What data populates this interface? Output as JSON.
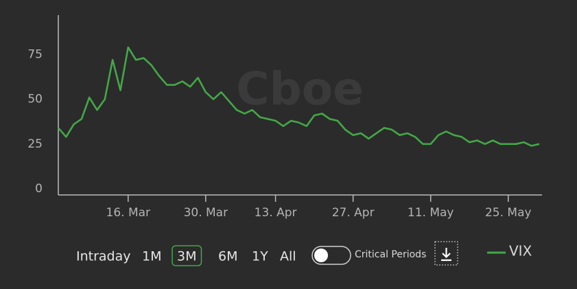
{
  "chart_data": {
    "type": "line",
    "watermark": "Cboe",
    "categories": [
      null,
      null,
      null,
      null,
      null,
      null,
      null,
      null,
      null,
      "16. Mar",
      null,
      null,
      null,
      null,
      null,
      null,
      null,
      null,
      null,
      "30. Mar",
      null,
      null,
      null,
      null,
      null,
      null,
      null,
      null,
      "13. Apr",
      null,
      null,
      null,
      null,
      null,
      null,
      null,
      null,
      null,
      "27. Apr",
      null,
      null,
      null,
      null,
      null,
      null,
      null,
      null,
      null,
      "11. May",
      null,
      null,
      null,
      null,
      null,
      null,
      null,
      null,
      null,
      "25. May",
      null,
      null,
      null,
      null
    ],
    "series": [
      {
        "name": "VIX",
        "color": "#43a847",
        "values": [
          34,
          29,
          36,
          39,
          51,
          44,
          50,
          72,
          55,
          79,
          72,
          73,
          69,
          63,
          58,
          58,
          60,
          57,
          62,
          54,
          50,
          54,
          49,
          44,
          42,
          44,
          40,
          39,
          38,
          35,
          38,
          37,
          35,
          41,
          42,
          39,
          38,
          33,
          30,
          31,
          28,
          31,
          34,
          33,
          30,
          31,
          29,
          25,
          25,
          30,
          32,
          30,
          29,
          26,
          27,
          25,
          27,
          25,
          25,
          25,
          26,
          24,
          25
        ]
      }
    ],
    "ylim": [
      0,
      97
    ],
    "yticks": [
      0,
      25,
      50,
      75
    ],
    "range_buttons": [
      "Intraday",
      "1M",
      "3M",
      "6M",
      "1Y",
      "All"
    ],
    "active_range": 2,
    "toggle_label": "Critical Periods",
    "toggle_on": false
  }
}
